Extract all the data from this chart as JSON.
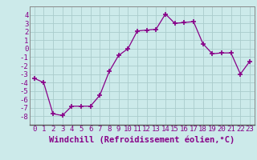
{
  "x": [
    0,
    1,
    2,
    3,
    4,
    5,
    6,
    7,
    8,
    9,
    10,
    11,
    12,
    13,
    14,
    15,
    16,
    17,
    18,
    19,
    20,
    21,
    22,
    23
  ],
  "y": [
    -3.5,
    -4.0,
    -7.7,
    -7.9,
    -6.8,
    -6.8,
    -6.8,
    -5.5,
    -2.7,
    -0.8,
    0.0,
    2.1,
    2.2,
    2.3,
    4.1,
    3.0,
    3.1,
    3.2,
    0.6,
    -0.6,
    -0.5,
    -0.5,
    -3.0,
    -1.5
  ],
  "line_color": "#880088",
  "marker": "+",
  "marker_size": 4,
  "bg_color": "#cceaea",
  "grid_color": "#aacccc",
  "xlabel": "Windchill (Refroidissement éolien,°C)",
  "xlim": [
    -0.5,
    23.5
  ],
  "ylim": [
    -9,
    5
  ],
  "yticks": [
    -8,
    -7,
    -6,
    -5,
    -4,
    -3,
    -2,
    -1,
    0,
    1,
    2,
    3,
    4
  ],
  "xticks": [
    0,
    1,
    2,
    3,
    4,
    5,
    6,
    7,
    8,
    9,
    10,
    11,
    12,
    13,
    14,
    15,
    16,
    17,
    18,
    19,
    20,
    21,
    22,
    23
  ],
  "xlabel_fontsize": 7.5,
  "tick_fontsize": 6.5,
  "label_color": "#880088",
  "spine_color": "#888888"
}
